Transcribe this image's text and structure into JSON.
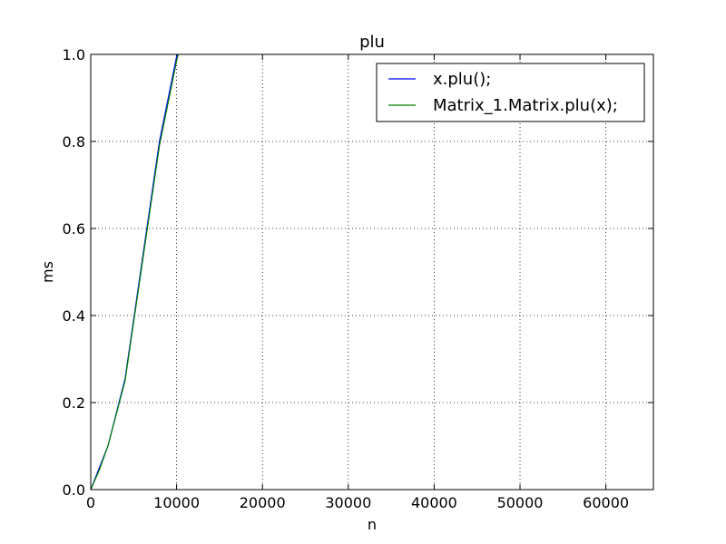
{
  "chart_data": {
    "type": "line",
    "title": "plu",
    "xlabel": "n",
    "ylabel": "ms",
    "xlim": [
      0,
      65536
    ],
    "ylim": [
      0,
      1.0
    ],
    "xticks": [
      0,
      10000,
      20000,
      30000,
      40000,
      50000,
      60000
    ],
    "xtick_labels": [
      "0",
      "10000",
      "20000",
      "30000",
      "40000",
      "50000",
      "60000"
    ],
    "yticks": [
      0.0,
      0.2,
      0.4,
      0.6,
      0.8,
      1.0
    ],
    "ytick_labels": [
      "0.0",
      "0.2",
      "0.4",
      "0.6",
      "0.8",
      "1.0"
    ],
    "grid": true,
    "legend_position": "top-right",
    "series": [
      {
        "name": "x.plu();",
        "color": "#0000ff",
        "x": [
          0,
          1000,
          2000,
          4000,
          8000,
          10000,
          10200
        ],
        "y": [
          0.0,
          0.05,
          0.1,
          0.255,
          0.8,
          0.995,
          1.0
        ]
      },
      {
        "name": "Matrix_1.Matrix.plu(x);",
        "color": "#008000",
        "x": [
          0,
          1000,
          2000,
          4000,
          8000,
          10000,
          10200
        ],
        "y": [
          0.0,
          0.045,
          0.1,
          0.25,
          0.79,
          0.985,
          1.0
        ]
      }
    ]
  }
}
